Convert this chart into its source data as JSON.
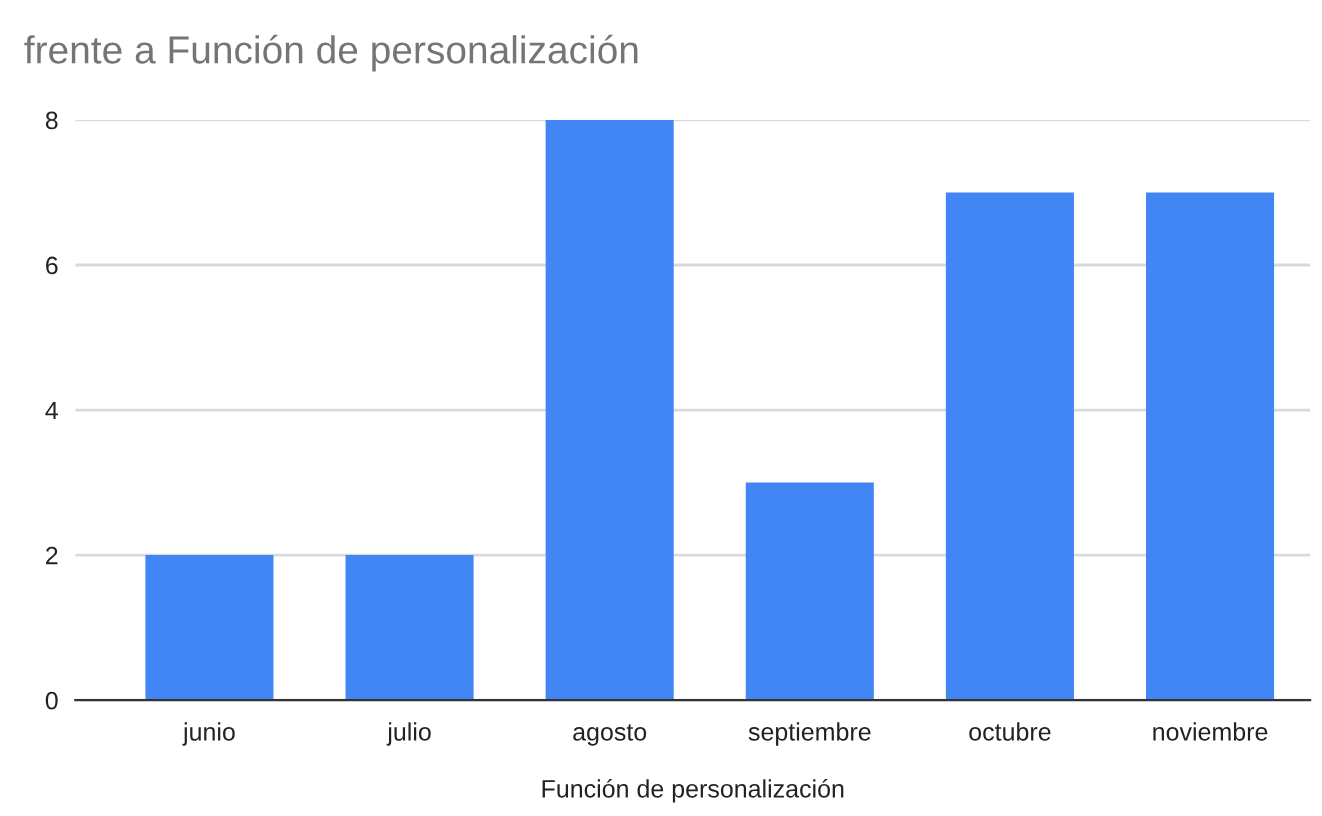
{
  "chart_data": {
    "type": "bar",
    "title": "frente a Función de personalización",
    "xlabel": "Función de personalización",
    "categories": [
      "junio",
      "julio",
      "agosto",
      "septiembre",
      "octubre",
      "noviembre"
    ],
    "values": [
      2,
      2,
      8,
      3,
      7,
      7
    ],
    "color": "#4285f4",
    "ylim": [
      0,
      8
    ],
    "yticks": [
      0,
      2,
      4,
      6,
      8
    ],
    "grid": "y",
    "legend": false
  }
}
